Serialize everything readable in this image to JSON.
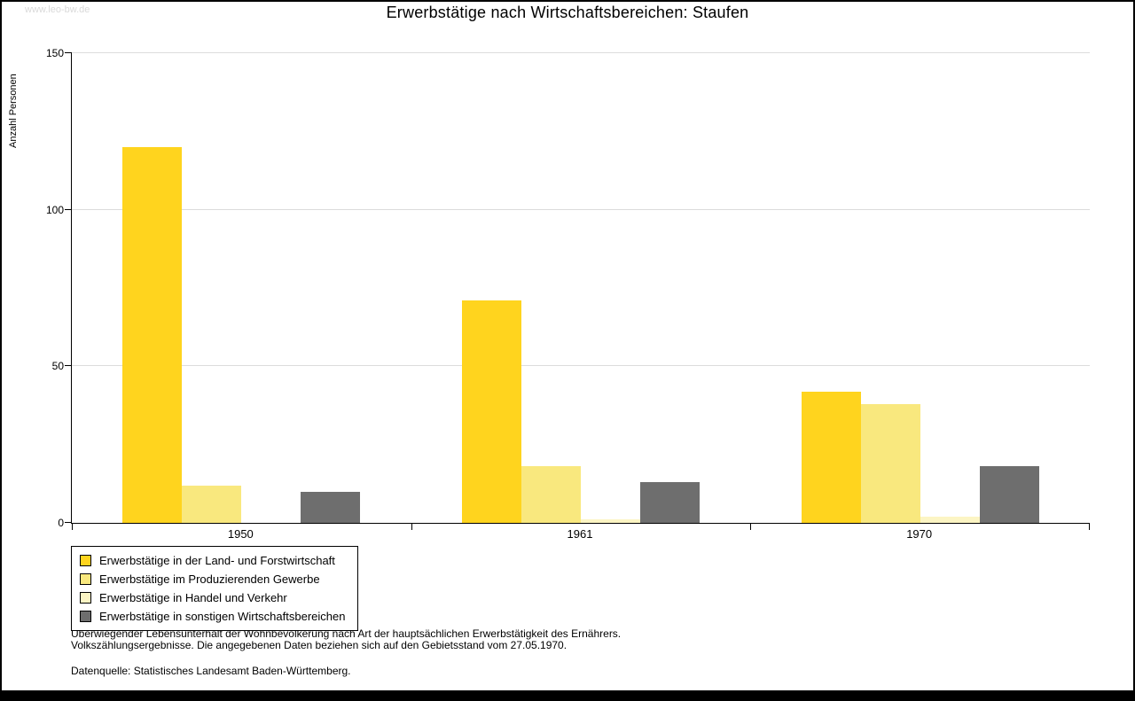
{
  "watermark": "www.leo-bw.de",
  "title": "Erwerbstätige nach Wirtschaftsbereichen: Staufen",
  "chart_data": {
    "type": "bar",
    "title": "Erwerbstätige nach Wirtschaftsbereichen: Staufen",
    "xlabel": "",
    "ylabel": "Anzahl Personen",
    "categories": [
      "1950",
      "1961",
      "1970"
    ],
    "series": [
      {
        "name": "Erwerbstätige in der Land- und Forstwirtschaft",
        "color": "#FFD41E",
        "values": [
          120,
          71,
          42
        ]
      },
      {
        "name": "Erwerbstätige im Produzierenden Gewerbe",
        "color": "#F9E87E",
        "values": [
          12,
          18,
          38
        ]
      },
      {
        "name": "Erwerbstätige in Handel und Verkehr",
        "color": "#FCF5C4",
        "values": [
          0,
          1,
          2
        ]
      },
      {
        "name": "Erwerbstätige in sonstigen Wirtschaftsbereichen",
        "color": "#6E6E6E",
        "values": [
          10,
          13,
          18
        ]
      }
    ],
    "ylim": [
      0,
      150
    ],
    "yticks": [
      0,
      50,
      100,
      150
    ],
    "grid": true,
    "legend_position": "bottom-left"
  },
  "footnotes": {
    "line1": "Überwiegender Lebensunterhalt der Wohnbevölkerung nach Art der hauptsächlichen Erwerbstätigkeit des Ernährers.",
    "line2": "Volkszählungsergebnisse. Die angegebenen Daten beziehen sich auf den Gebietsstand vom 27.05.1970.",
    "source": "Datenquelle: Statistisches Landesamt Baden-Württemberg."
  }
}
